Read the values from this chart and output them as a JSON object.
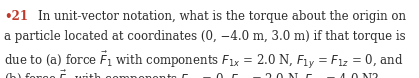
{
  "background_color": "#ffffff",
  "bullet_dot": "•",
  "bullet_num": "21",
  "line1": "In unit-vector notation, what is the torque about the origin on",
  "line2": "a particle located at coordinates (0, −4.0 m, 3.0 m) if that torque is",
  "line3": "due to (a) force $\\vec{F}_1$ with components $F_{1x}$ = 2.0 N, $F_{1y}$ = $F_{1z}$ = 0, and",
  "line4": "(b) force $\\vec{F}_2$ with components $F_{2x}$ = 0, $F_{2y}$ = 2.0 N, $F_{2z}$ = 4.0 N?",
  "font_size": 8.5,
  "bullet_color": "#c0392b",
  "text_color": "#2c2c2c",
  "fig_width": 4.19,
  "fig_height": 0.78,
  "dpi": 100
}
